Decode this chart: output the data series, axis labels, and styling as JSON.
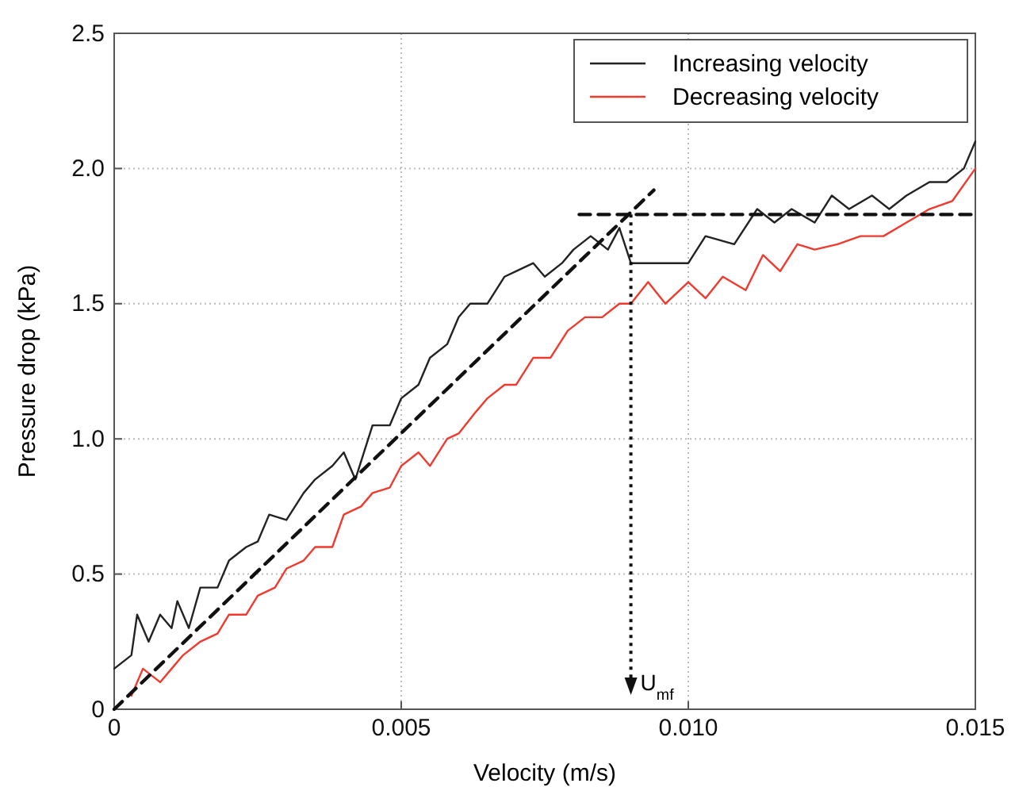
{
  "chart_data": {
    "type": "line",
    "xlabel": "Velocity (m/s)",
    "ylabel": "Pressure drop (kPa)",
    "xlim": [
      0,
      0.015
    ],
    "xticks": [
      0,
      0.005,
      {
        "value": 0.01,
        "label": "0.010"
      },
      0.015
    ],
    "ylim": [
      0,
      2.5
    ],
    "yticks": [
      0,
      0.5,
      {
        "value": 1,
        "label": "1.0"
      },
      1.5,
      {
        "value": 2,
        "label": "2.0"
      },
      2.5
    ],
    "grid": true,
    "legend": "top right",
    "marker": "none",
    "series": [
      {
        "name": "Increasing velocity",
        "color": "#222222",
        "line_style": "solid",
        "x": [
          0,
          0.0003,
          0.0004,
          0.0006,
          0.0008,
          0.001,
          0.0011,
          0.0013,
          0.0015,
          0.0018,
          0.002,
          0.0023,
          0.0025,
          0.0027,
          0.003,
          0.0033,
          0.0035,
          0.0038,
          0.004,
          0.0042,
          0.0045,
          0.0048,
          0.005,
          0.0053,
          0.0055,
          0.0058,
          0.006,
          0.0062,
          0.0065,
          0.0068,
          0.007,
          0.0073,
          0.0075,
          0.0078,
          0.008,
          0.0083,
          0.0086,
          0.0088,
          0.009,
          0.0095,
          0.01,
          0.0103,
          0.0108,
          0.0112,
          0.0115,
          0.0118,
          0.0122,
          0.0125,
          0.0128,
          0.0132,
          0.0135,
          0.0138,
          0.0142,
          0.0145,
          0.0148,
          0.015
        ],
        "values": [
          0.15,
          0.2,
          0.35,
          0.25,
          0.35,
          0.3,
          0.4,
          0.3,
          0.45,
          0.45,
          0.55,
          0.6,
          0.62,
          0.72,
          0.7,
          0.8,
          0.85,
          0.9,
          0.95,
          0.85,
          1.05,
          1.05,
          1.15,
          1.2,
          1.3,
          1.35,
          1.45,
          1.5,
          1.5,
          1.6,
          1.62,
          1.65,
          1.6,
          1.65,
          1.7,
          1.75,
          1.7,
          1.78,
          1.65,
          1.65,
          1.65,
          1.75,
          1.72,
          1.85,
          1.8,
          1.85,
          1.8,
          1.9,
          1.85,
          1.9,
          1.85,
          1.9,
          1.95,
          1.95,
          2.0,
          2.1
        ]
      },
      {
        "name": "Decreasing velocity",
        "color": "#f03a2e",
        "line_style": "solid",
        "x": [
          0.0003,
          0.0005,
          0.0008,
          0.001,
          0.0012,
          0.0015,
          0.0018,
          0.002,
          0.0023,
          0.0025,
          0.0028,
          0.003,
          0.0033,
          0.0035,
          0.0038,
          0.004,
          0.0043,
          0.0045,
          0.0048,
          0.005,
          0.0053,
          0.0055,
          0.0058,
          0.006,
          0.0063,
          0.0065,
          0.0068,
          0.007,
          0.0073,
          0.0076,
          0.0079,
          0.0082,
          0.0085,
          0.0088,
          0.009,
          0.0093,
          0.0096,
          0.01,
          0.0103,
          0.0106,
          0.011,
          0.0113,
          0.0116,
          0.0119,
          0.0122,
          0.0126,
          0.013,
          0.0134,
          0.0138,
          0.0142,
          0.0146,
          0.015
        ],
        "values": [
          0.05,
          0.15,
          0.1,
          0.15,
          0.2,
          0.25,
          0.28,
          0.35,
          0.35,
          0.42,
          0.45,
          0.52,
          0.55,
          0.6,
          0.6,
          0.72,
          0.75,
          0.8,
          0.82,
          0.9,
          0.95,
          0.9,
          1.0,
          1.02,
          1.1,
          1.15,
          1.2,
          1.2,
          1.3,
          1.3,
          1.4,
          1.45,
          1.45,
          1.5,
          1.5,
          1.58,
          1.5,
          1.58,
          1.52,
          1.6,
          1.55,
          1.68,
          1.62,
          1.72,
          1.7,
          1.72,
          1.75,
          1.75,
          1.8,
          1.85,
          1.88,
          2.0
        ]
      },
      {
        "color": "#111111",
        "line_style": "dashed",
        "x": [
          0,
          0.0094
        ],
        "values": [
          0,
          1.92
        ]
      },
      {
        "color": "#111111",
        "line_style": "dashed",
        "x": [
          0.0081,
          0.015
        ],
        "values": [
          1.83,
          1.83
        ]
      }
    ],
    "ref_lines": [
      {
        "axis": "x",
        "value": 0.009,
        "label": "U$_{mf}$",
        "color": "#111111",
        "line_style": "dotted"
      }
    ]
  }
}
